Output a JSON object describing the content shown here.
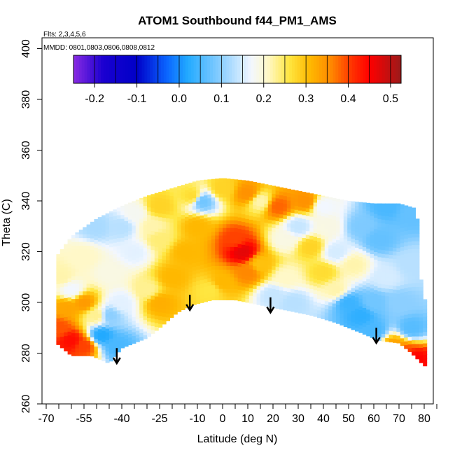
{
  "chart_data": {
    "type": "heatmap",
    "title": "ATOM1 Southbound f44_PM1_AMS",
    "annotations": {
      "flights": "Flts: 2,3,4,5,6",
      "dates": "MMDD: 0801,0803,0806,0808,0812"
    },
    "xlabel": "Latitude (deg N)",
    "ylabel": "Theta (C)",
    "xlim": [
      -70,
      85
    ],
    "ylim": [
      260,
      400
    ],
    "x_ticks": [
      -70,
      -55,
      -40,
      -25,
      -10,
      0,
      10,
      20,
      30,
      40,
      50,
      60,
      70,
      80
    ],
    "x_minor_ticks": [
      -65,
      -60,
      -50,
      -45,
      -35,
      -30,
      -20,
      -15,
      -5,
      5,
      15,
      25,
      35,
      45,
      55,
      65,
      75,
      85
    ],
    "y_ticks": [
      260,
      280,
      300,
      320,
      340,
      360,
      380,
      400
    ],
    "colorbar": {
      "range": [
        -0.25,
        0.525
      ],
      "ticks": [
        -0.2,
        -0.1,
        0.0,
        0.1,
        0.2,
        0.3,
        0.4,
        0.5
      ],
      "tick_labels": [
        "-0.2",
        "-0.1",
        "0.0",
        "0.1",
        "0.2",
        "0.3",
        "0.4",
        "0.5"
      ],
      "stops": [
        {
          "v": -0.25,
          "c": "#8a2be2"
        },
        {
          "v": -0.18,
          "c": "#1a00d0"
        },
        {
          "v": -0.1,
          "c": "#0000c8"
        },
        {
          "v": -0.03,
          "c": "#0a64ff"
        },
        {
          "v": 0.02,
          "c": "#22aaff"
        },
        {
          "v": 0.1,
          "c": "#8ccfff"
        },
        {
          "v": 0.17,
          "c": "#f2f7ff"
        },
        {
          "v": 0.21,
          "c": "#fff8c8"
        },
        {
          "v": 0.26,
          "c": "#ffe640"
        },
        {
          "v": 0.31,
          "c": "#ffb800"
        },
        {
          "v": 0.36,
          "c": "#ff8800"
        },
        {
          "v": 0.41,
          "c": "#ff3000"
        },
        {
          "v": 0.45,
          "c": "#ff0000"
        },
        {
          "v": 0.525,
          "c": "#9b1a1a"
        }
      ]
    },
    "envelope": {
      "upper": [
        [
          -66,
          318
        ],
        [
          -60,
          326
        ],
        [
          -50,
          333
        ],
        [
          -40,
          338
        ],
        [
          -30,
          342
        ],
        [
          -20,
          345
        ],
        [
          -10,
          348
        ],
        [
          0,
          349
        ],
        [
          10,
          348
        ],
        [
          20,
          346
        ],
        [
          30,
          344
        ],
        [
          40,
          342
        ],
        [
          50,
          340
        ],
        [
          60,
          339
        ],
        [
          70,
          339
        ],
        [
          77,
          337
        ],
        [
          79,
          305
        ],
        [
          82,
          296
        ]
      ],
      "lower": [
        [
          -66,
          284
        ],
        [
          -60,
          279
        ],
        [
          -52,
          279
        ],
        [
          -45,
          276
        ],
        [
          -40,
          282
        ],
        [
          -35,
          284
        ],
        [
          -30,
          286
        ],
        [
          -25,
          290
        ],
        [
          -18,
          296
        ],
        [
          -12,
          299
        ],
        [
          -4,
          301
        ],
        [
          5,
          301
        ],
        [
          15,
          299
        ],
        [
          25,
          297
        ],
        [
          35,
          295
        ],
        [
          45,
          292
        ],
        [
          55,
          288
        ],
        [
          62,
          285
        ],
        [
          70,
          284
        ],
        [
          75,
          280
        ],
        [
          80,
          275
        ]
      ]
    },
    "field_anchors": [
      [
        -65,
        290,
        0.39
      ],
      [
        -60,
        285,
        0.44
      ],
      [
        -55,
        283,
        0.4
      ],
      [
        -62,
        298,
        0.33
      ],
      [
        -55,
        300,
        0.34
      ],
      [
        -50,
        295,
        0.23
      ],
      [
        -45,
        295,
        0.1
      ],
      [
        -48,
        287,
        0.02
      ],
      [
        -64,
        310,
        0.22
      ],
      [
        -55,
        318,
        0.21
      ],
      [
        -45,
        312,
        0.19
      ],
      [
        -40,
        300,
        0.16
      ],
      [
        -42,
        283,
        0.05
      ],
      [
        -35,
        320,
        0.16
      ],
      [
        -30,
        305,
        0.23
      ],
      [
        -25,
        300,
        0.32
      ],
      [
        -20,
        310,
        0.31
      ],
      [
        -15,
        320,
        0.31
      ],
      [
        -10,
        330,
        0.31
      ],
      [
        -25,
        325,
        0.24
      ],
      [
        -35,
        335,
        0.18
      ],
      [
        -25,
        338,
        0.28
      ],
      [
        -12,
        342,
        0.27
      ],
      [
        -8,
        340,
        0.08
      ],
      [
        0,
        345,
        0.28
      ],
      [
        10,
        343,
        0.35
      ],
      [
        15,
        340,
        0.22
      ],
      [
        22,
        338,
        0.38
      ],
      [
        5,
        325,
        0.4
      ],
      [
        8,
        320,
        0.47
      ],
      [
        10,
        312,
        0.36
      ],
      [
        0,
        308,
        0.31
      ],
      [
        -5,
        305,
        0.26
      ],
      [
        15,
        315,
        0.3
      ],
      [
        20,
        303,
        0.14
      ],
      [
        25,
        310,
        0.21
      ],
      [
        28,
        300,
        0.13
      ],
      [
        25,
        325,
        0.19
      ],
      [
        30,
        330,
        0.14
      ],
      [
        35,
        322,
        0.28
      ],
      [
        40,
        312,
        0.27
      ],
      [
        45,
        320,
        0.15
      ],
      [
        45,
        305,
        0.22
      ],
      [
        50,
        300,
        0.04
      ],
      [
        55,
        295,
        0.03
      ],
      [
        60,
        300,
        0.08
      ],
      [
        52,
        315,
        0.22
      ],
      [
        55,
        330,
        0.09
      ],
      [
        62,
        325,
        0.07
      ],
      [
        65,
        310,
        0.15
      ],
      [
        70,
        300,
        0.1
      ],
      [
        75,
        290,
        0.06
      ],
      [
        60,
        289,
        0.05
      ],
      [
        68,
        283,
        0.33
      ],
      [
        72,
        280,
        0.4
      ],
      [
        76,
        278,
        0.45
      ],
      [
        65,
        338,
        0.05
      ],
      [
        75,
        335,
        0.07
      ],
      [
        75,
        315,
        0.13
      ],
      [
        40,
        338,
        0.17
      ],
      [
        42,
        330,
        0.19
      ],
      [
        33,
        340,
        0.35
      ],
      [
        -50,
        330,
        0.12
      ],
      [
        -40,
        330,
        0.13
      ],
      [
        -60,
        305,
        0.17
      ],
      [
        -28,
        330,
        0.22
      ]
    ],
    "arrows": [
      {
        "lat": -42,
        "theta_top": 282,
        "theta_tip": 276
      },
      {
        "lat": -13,
        "theta_top": 303,
        "theta_tip": 297
      },
      {
        "lat": 19,
        "theta_top": 302,
        "theta_tip": 296
      },
      {
        "lat": 61,
        "theta_top": 290,
        "theta_tip": 284
      }
    ]
  }
}
